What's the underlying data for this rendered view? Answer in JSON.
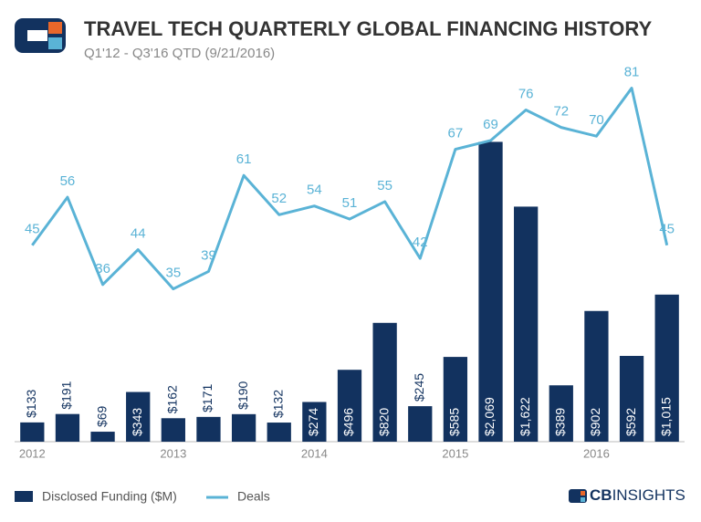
{
  "chart_data": {
    "type": "bar",
    "title": "TRAVEL TECH QUARTERLY GLOBAL FINANCING HISTORY",
    "subtitle": "Q1'12 - Q3'16 QTD (9/21/2016)",
    "categories": [
      "2012",
      null,
      null,
      null,
      "2013",
      null,
      null,
      null,
      "2014",
      null,
      null,
      null,
      "2015",
      null,
      null,
      null,
      "2016",
      null,
      null
    ],
    "ylim": [
      0,
      2500
    ],
    "y2lim": [
      0,
      83
    ],
    "legend": "bottom-left",
    "series": [
      {
        "name": "Disclosed Funding ($M)",
        "type": "bar",
        "color": "#12325f",
        "values": [
          133,
          191,
          69,
          343,
          162,
          171,
          190,
          132,
          274,
          496,
          820,
          245,
          585,
          2069,
          1622,
          389,
          902,
          592,
          1015
        ],
        "value_labels": [
          "$133",
          "$191",
          "$69",
          "$343",
          "$162",
          "$171",
          "$190",
          "$132",
          "$274",
          "$496",
          "$820",
          "$245",
          "$585",
          "$2,069",
          "$1,622",
          "$389",
          "$902",
          "$592",
          "$1,015"
        ]
      },
      {
        "name": "Deals",
        "type": "line",
        "axis": "y2",
        "color": "#5ab3d6",
        "values": [
          45,
          56,
          36,
          44,
          35,
          39,
          61,
          52,
          54,
          51,
          55,
          42,
          67,
          69,
          76,
          72,
          70,
          81,
          45
        ]
      }
    ]
  },
  "brand": {
    "bold": "CB",
    "light": "INSIGHTS"
  }
}
